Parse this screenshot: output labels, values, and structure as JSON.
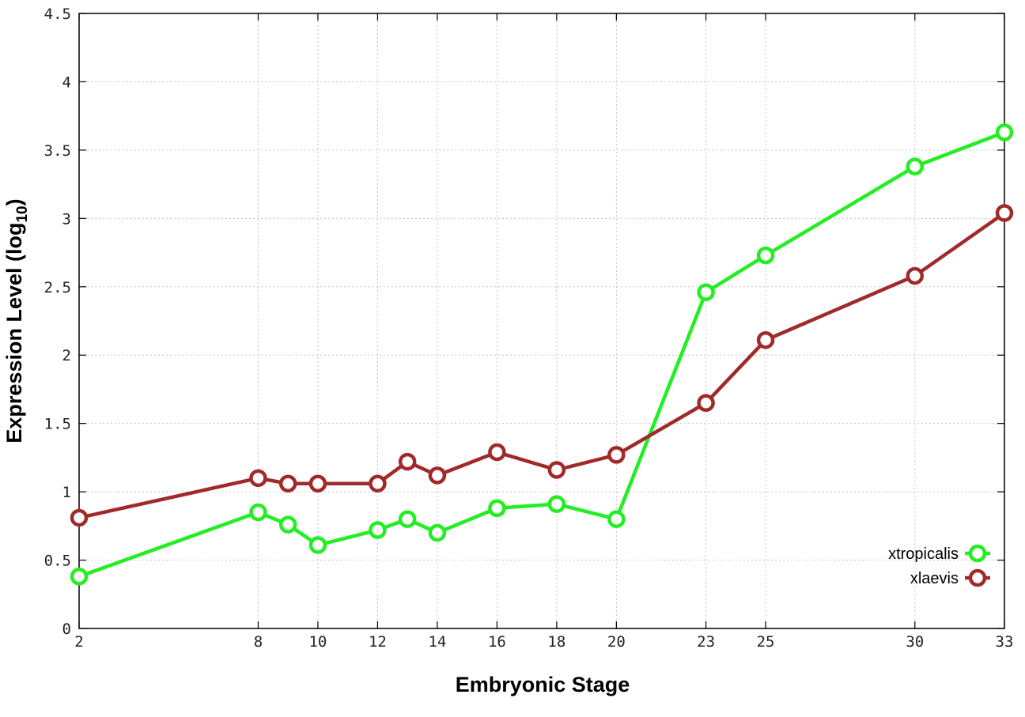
{
  "chart_data": {
    "type": "line",
    "xlabel": "Embryonic Stage",
    "ylabel_main": "Expression Level (log",
    "ylabel_sub": "10",
    "ylabel_close": ")",
    "xlim": [
      2,
      33
    ],
    "ylim": [
      0,
      4.5
    ],
    "x_ticks": [
      2,
      8,
      10,
      12,
      14,
      16,
      18,
      20,
      23,
      25,
      30,
      33
    ],
    "y_ticks": [
      0,
      0.5,
      1,
      1.5,
      2,
      2.5,
      3,
      3.5,
      4,
      4.5
    ],
    "y_tick_labels": [
      "0",
      "0.5",
      "1",
      "1.5",
      "2",
      "2.5",
      "3",
      "3.5",
      "4",
      "4.5"
    ],
    "grid": true,
    "legend_position": "bottom-right",
    "series": [
      {
        "name": "xtropicalis",
        "color": "#22ee22",
        "x": [
          2,
          8,
          9,
          10,
          12,
          13,
          14,
          16,
          18,
          20,
          23,
          25,
          30,
          33
        ],
        "y": [
          0.38,
          0.85,
          0.76,
          0.61,
          0.72,
          0.8,
          0.7,
          0.88,
          0.91,
          0.8,
          2.46,
          2.73,
          3.38,
          3.63
        ]
      },
      {
        "name": "xlaevis",
        "color": "#a02a2a",
        "x": [
          2,
          8,
          9,
          10,
          12,
          13,
          14,
          16,
          18,
          20,
          23,
          25,
          30,
          33
        ],
        "y": [
          0.81,
          1.1,
          1.06,
          1.06,
          1.06,
          1.22,
          1.12,
          1.29,
          1.16,
          1.27,
          1.65,
          2.11,
          2.58,
          3.04
        ]
      }
    ]
  }
}
